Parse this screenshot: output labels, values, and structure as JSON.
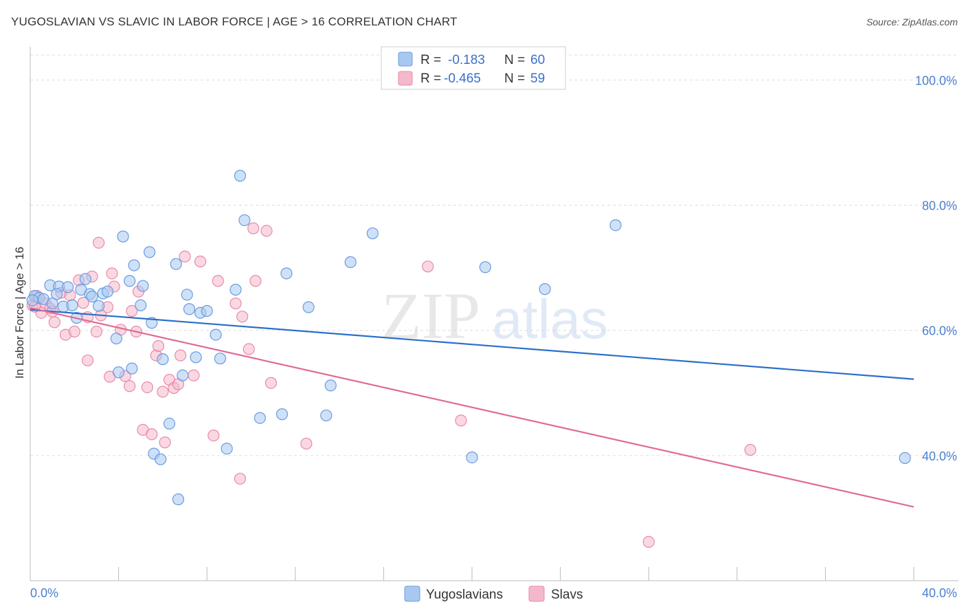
{
  "title": "YUGOSLAVIAN VS SLAVIC IN LABOR FORCE | AGE > 16 CORRELATION CHART",
  "source": "Source: ZipAtlas.com",
  "watermark": {
    "zip": "ZIP",
    "atlas": "atlas"
  },
  "colors": {
    "blue_fill": "#a8c8f0",
    "blue_stroke": "#6a9be0",
    "blue_line": "#2a6fc9",
    "pink_fill": "#f5b8cb",
    "pink_stroke": "#e88aa8",
    "pink_line": "#e06a95",
    "grid": "#dddddd",
    "tick_text": "#4a7fd0"
  },
  "chart_data": {
    "type": "scatter",
    "title": "YUGOSLAVIAN VS SLAVIC IN LABOR FORCE | AGE > 16 CORRELATION CHART",
    "xlabel": "",
    "ylabel": "In Labor Force | Age > 16",
    "xlim": [
      0,
      40
    ],
    "ylim": [
      20,
      104
    ],
    "x_tick_labels": [
      "0.0%",
      "40.0%"
    ],
    "y_ticks": [
      40,
      60,
      80,
      100
    ],
    "y_tick_labels": [
      "40.0%",
      "60.0%",
      "80.0%",
      "100.0%"
    ],
    "legend": {
      "rows": [
        {
          "r_label": "R = ",
          "r_value": "-0.183",
          "n_label": "N = ",
          "n_value": "60"
        },
        {
          "r_label": "R = ",
          "r_value": "-0.465",
          "n_label": "N = ",
          "n_value": "59"
        }
      ]
    },
    "series": [
      {
        "name": "Yugoslavians",
        "trend": {
          "x0": 0,
          "y0": 63.3,
          "x1": 40,
          "y1": 52.2
        },
        "points": [
          [
            0.2,
            65.5
          ],
          [
            0.4,
            65.2
          ],
          [
            0.6,
            65.0
          ],
          [
            0.9,
            67.2
          ],
          [
            1.0,
            64.3
          ],
          [
            1.3,
            67.0
          ],
          [
            1.5,
            63.8
          ],
          [
            1.7,
            66.9
          ],
          [
            1.9,
            64.0
          ],
          [
            2.1,
            62.0
          ],
          [
            2.3,
            66.5
          ],
          [
            2.5,
            68.2
          ],
          [
            2.7,
            65.8
          ],
          [
            2.8,
            65.4
          ],
          [
            3.1,
            63.9
          ],
          [
            3.3,
            65.9
          ],
          [
            3.5,
            66.2
          ],
          [
            3.9,
            58.7
          ],
          [
            4.2,
            75.0
          ],
          [
            4.5,
            67.9
          ],
          [
            4.6,
            53.9
          ],
          [
            4.7,
            70.4
          ],
          [
            4.0,
            53.3
          ],
          [
            5.0,
            64.0
          ],
          [
            5.1,
            67.1
          ],
          [
            5.4,
            72.5
          ],
          [
            5.5,
            61.2
          ],
          [
            5.6,
            40.3
          ],
          [
            5.9,
            39.4
          ],
          [
            6.0,
            55.4
          ],
          [
            6.3,
            45.1
          ],
          [
            6.6,
            70.6
          ],
          [
            6.9,
            52.8
          ],
          [
            7.1,
            65.7
          ],
          [
            7.2,
            63.4
          ],
          [
            7.5,
            55.7
          ],
          [
            7.7,
            62.8
          ],
          [
            8.0,
            63.1
          ],
          [
            8.4,
            59.3
          ],
          [
            8.6,
            55.5
          ],
          [
            8.9,
            41.1
          ],
          [
            9.3,
            66.5
          ],
          [
            9.5,
            84.7
          ],
          [
            9.7,
            77.6
          ],
          [
            6.7,
            33.0
          ],
          [
            10.4,
            46.0
          ],
          [
            11.4,
            46.6
          ],
          [
            11.6,
            69.1
          ],
          [
            12.6,
            63.7
          ],
          [
            13.4,
            46.4
          ],
          [
            13.6,
            51.2
          ],
          [
            14.5,
            70.9
          ],
          [
            15.5,
            75.5
          ],
          [
            20.0,
            39.7
          ],
          [
            20.6,
            70.1
          ],
          [
            23.3,
            66.6
          ],
          [
            26.5,
            76.8
          ],
          [
            39.6,
            39.6
          ],
          [
            0.1,
            64.8
          ],
          [
            1.2,
            65.8
          ]
        ]
      },
      {
        "name": "Slavs",
        "trend": {
          "x0": 0,
          "y0": 63.6,
          "x1": 40,
          "y1": 31.8
        },
        "points": [
          [
            0.1,
            64.0
          ],
          [
            0.3,
            65.5
          ],
          [
            0.5,
            62.8
          ],
          [
            0.7,
            64.3
          ],
          [
            0.9,
            63.5
          ],
          [
            1.1,
            61.3
          ],
          [
            1.4,
            66.0
          ],
          [
            1.6,
            59.3
          ],
          [
            1.8,
            65.6
          ],
          [
            2.0,
            59.8
          ],
          [
            2.2,
            68.0
          ],
          [
            2.4,
            64.4
          ],
          [
            2.6,
            62.1
          ],
          [
            2.6,
            55.2
          ],
          [
            2.8,
            68.6
          ],
          [
            3.0,
            59.8
          ],
          [
            3.2,
            62.4
          ],
          [
            3.1,
            74.0
          ],
          [
            3.5,
            63.7
          ],
          [
            3.6,
            52.6
          ],
          [
            3.7,
            69.1
          ],
          [
            3.8,
            67.0
          ],
          [
            4.1,
            60.1
          ],
          [
            4.3,
            52.7
          ],
          [
            4.5,
            51.1
          ],
          [
            4.6,
            63.1
          ],
          [
            4.8,
            59.8
          ],
          [
            4.9,
            66.2
          ],
          [
            5.1,
            44.1
          ],
          [
            5.3,
            50.9
          ],
          [
            5.5,
            43.4
          ],
          [
            5.7,
            56.0
          ],
          [
            5.8,
            57.5
          ],
          [
            6.0,
            50.2
          ],
          [
            6.1,
            42.1
          ],
          [
            6.3,
            52.1
          ],
          [
            6.5,
            50.8
          ],
          [
            6.7,
            51.4
          ],
          [
            6.8,
            56.0
          ],
          [
            7.0,
            71.8
          ],
          [
            7.4,
            52.8
          ],
          [
            7.7,
            71.0
          ],
          [
            8.3,
            43.2
          ],
          [
            8.5,
            67.9
          ],
          [
            9.3,
            64.3
          ],
          [
            9.5,
            36.3
          ],
          [
            9.6,
            62.2
          ],
          [
            9.9,
            57.0
          ],
          [
            10.1,
            76.3
          ],
          [
            10.2,
            67.9
          ],
          [
            10.7,
            75.9
          ],
          [
            10.9,
            51.6
          ],
          [
            12.5,
            41.9
          ],
          [
            18.0,
            70.2
          ],
          [
            19.5,
            45.6
          ],
          [
            32.6,
            40.9
          ],
          [
            28.0,
            26.2
          ],
          [
            0.2,
            63.8
          ],
          [
            1.0,
            63.0
          ]
        ]
      }
    ]
  }
}
